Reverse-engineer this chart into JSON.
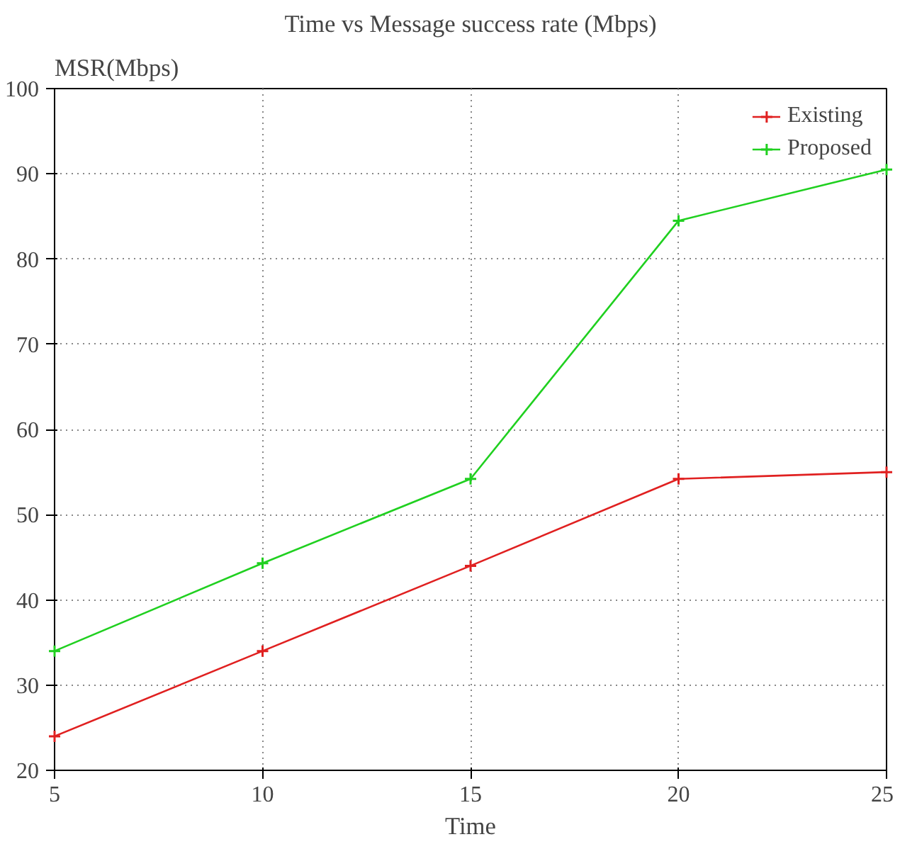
{
  "chart_data": {
    "type": "line",
    "title": "Time vs Message success rate (Mbps)",
    "xlabel": "Time",
    "ylabel": "MSR(Mbps)",
    "x": [
      5,
      10,
      15,
      20,
      25
    ],
    "series": [
      {
        "name": "Existing",
        "color": "#e02020",
        "values": [
          24,
          34,
          44,
          54.2,
          55
        ]
      },
      {
        "name": "Proposed",
        "color": "#20d020",
        "values": [
          34,
          44.3,
          54.2,
          84.5,
          90.5
        ]
      }
    ],
    "xlim": [
      5,
      25
    ],
    "xticks": [
      5,
      10,
      15,
      20,
      25
    ],
    "ylim": [
      20,
      100
    ],
    "yticks": [
      20,
      30,
      40,
      50,
      60,
      70,
      80,
      90,
      100
    ],
    "grid": true,
    "legend": "top right",
    "marker": "cross",
    "line_style": "solid"
  }
}
